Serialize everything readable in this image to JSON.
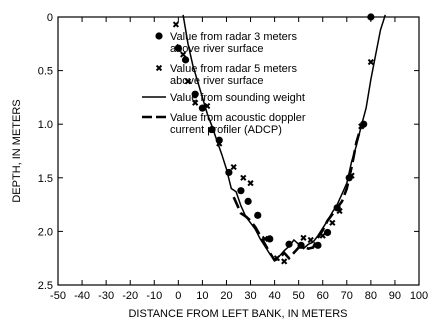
{
  "chart_data": {
    "type": "scatter",
    "title": "",
    "xlabel": "DISTANCE FROM LEFT BANK, IN METERS",
    "ylabel": "DEPTH, IN METERS",
    "xlim": [
      -50,
      100
    ],
    "ylim": [
      0,
      2.5
    ],
    "y_inverted": true,
    "grid": false,
    "legend_placement": "top-right",
    "x_ticks": [
      "-50",
      "-40",
      "-30",
      "-20",
      "-10",
      "0",
      "10",
      "20",
      "30",
      "40",
      "50",
      "60",
      "70",
      "80",
      "90",
      "100"
    ],
    "y_ticks": [
      "0",
      "0.5",
      "1.0",
      "1.5",
      "2.0",
      "2.5"
    ],
    "x_tick_values": [
      -50,
      -40,
      -30,
      -20,
      -10,
      0,
      10,
      20,
      30,
      40,
      50,
      60,
      70,
      80,
      90,
      100
    ],
    "y_tick_values": [
      0,
      0.5,
      1.0,
      1.5,
      2.0,
      2.5
    ],
    "series": [
      {
        "name": "Value from radar 3 meters above river surface",
        "legend_lines": [
          "Value from radar 3 meters",
          "above river surface"
        ],
        "kind": "dot",
        "x": [
          0,
          3,
          7,
          10,
          14,
          17,
          21,
          26,
          29,
          33,
          38,
          46,
          51,
          58,
          62,
          66,
          71,
          77,
          80
        ],
        "y": [
          0.29,
          0.4,
          0.72,
          0.85,
          1.05,
          1.15,
          1.45,
          1.62,
          1.72,
          1.85,
          2.07,
          2.12,
          2.13,
          2.13,
          2.01,
          1.78,
          1.5,
          1.0,
          0.0
        ]
      },
      {
        "name": "Value from radar 5 meters above river surface",
        "legend_lines": [
          "Value from radar 5 meters",
          "above river surface"
        ],
        "kind": "x",
        "x": [
          -1,
          2,
          4,
          7,
          12,
          17,
          23,
          27,
          30,
          36,
          41,
          44,
          52,
          55,
          60,
          64,
          67,
          72,
          76,
          80
        ],
        "y": [
          0.07,
          0.35,
          0.6,
          0.8,
          0.83,
          1.18,
          1.4,
          1.5,
          1.55,
          2.07,
          2.25,
          2.28,
          2.06,
          2.08,
          2.04,
          1.92,
          1.81,
          1.48,
          1.02,
          0.42
        ]
      },
      {
        "name": "Value from sounding weight",
        "legend_lines": [
          "Value from sounding weight"
        ],
        "kind": "solid",
        "x": [
          2,
          4,
          6,
          8,
          10,
          12,
          14,
          16,
          18,
          20,
          22,
          24,
          26,
          28,
          30,
          32,
          34,
          36,
          38,
          40,
          42,
          44,
          46,
          48,
          50,
          52,
          54,
          56,
          58,
          60,
          62,
          64,
          66,
          68,
          70,
          72,
          74,
          76,
          78,
          80,
          82,
          84,
          86
        ],
        "y": [
          -0.02,
          0.25,
          0.45,
          0.6,
          0.75,
          0.9,
          1.02,
          1.15,
          1.28,
          1.42,
          1.6,
          1.63,
          1.76,
          1.86,
          1.92,
          1.98,
          2.07,
          2.14,
          2.21,
          2.26,
          2.23,
          2.18,
          2.14,
          2.08,
          2.12,
          2.16,
          2.12,
          2.1,
          2.04,
          1.97,
          1.9,
          1.82,
          1.75,
          1.65,
          1.55,
          1.35,
          1.2,
          1.02,
          0.85,
          0.58,
          0.35,
          0.12,
          -0.02
        ]
      },
      {
        "name": "Value from acoustic doppler current profiler (ADCP)",
        "legend_lines": [
          "Value from acoustic doppler",
          "current profiler (ADCP)"
        ],
        "kind": "dashed",
        "x": [
          23,
          26,
          28,
          30,
          32,
          34,
          36,
          38,
          40,
          42,
          44,
          46,
          48,
          50,
          52,
          54,
          56,
          58,
          60,
          62,
          64,
          66,
          68,
          70,
          72,
          74,
          76,
          78
        ],
        "y": [
          1.68,
          1.83,
          1.86,
          1.9,
          1.96,
          2.04,
          2.12,
          2.2,
          2.27,
          2.25,
          2.2,
          2.25,
          2.2,
          2.15,
          2.14,
          2.16,
          2.15,
          2.06,
          1.99,
          1.9,
          1.84,
          1.78,
          1.72,
          1.6,
          1.4,
          1.17,
          1.02,
          0.98
        ]
      }
    ]
  }
}
